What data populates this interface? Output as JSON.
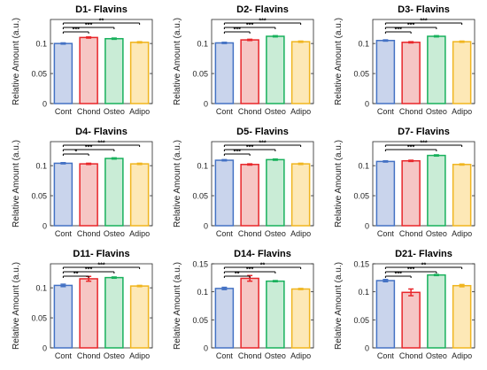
{
  "chart_data": [
    {
      "type": "bar",
      "title": "D1- Flavins",
      "ylabel": "Relative Amount (a.u.)",
      "categories": [
        "Cont",
        "Chond",
        "Osteo",
        "Adipo"
      ],
      "values": [
        0.1,
        0.11,
        0.108,
        0.102
      ],
      "errors": [
        0.001,
        0.001,
        0.001,
        0.001
      ],
      "ylim": [
        0,
        0.14
      ],
      "yticks": [
        "0",
        "0.05",
        "0.1"
      ],
      "significance": [
        {
          "from": 0,
          "to": 3,
          "label": "**"
        },
        {
          "from": 0,
          "to": 2,
          "label": "***"
        },
        {
          "from": 0,
          "to": 1,
          "label": "***"
        }
      ]
    },
    {
      "type": "bar",
      "title": "D2- Flavins",
      "ylabel": "Relative Amount (a.u.)",
      "categories": [
        "Cont",
        "Chond",
        "Osteo",
        "Adipo"
      ],
      "values": [
        0.101,
        0.106,
        0.112,
        0.103
      ],
      "errors": [
        0.001,
        0.001,
        0.001,
        0.001
      ],
      "ylim": [
        0,
        0.14
      ],
      "yticks": [
        "0",
        "0.05",
        "0.1"
      ],
      "significance": [
        {
          "from": 0,
          "to": 3,
          "label": "***"
        },
        {
          "from": 0,
          "to": 2,
          "label": "***"
        },
        {
          "from": 0,
          "to": 1,
          "label": "***"
        }
      ]
    },
    {
      "type": "bar",
      "title": "D3- Flavins",
      "ylabel": "Relative Amount (a.u.)",
      "categories": [
        "Cont",
        "Chond",
        "Osteo",
        "Adipo"
      ],
      "values": [
        0.105,
        0.102,
        0.112,
        0.103
      ],
      "errors": [
        0.001,
        0.001,
        0.001,
        0.001
      ],
      "ylim": [
        0,
        0.14
      ],
      "yticks": [
        "0",
        "0.05",
        "0.1"
      ],
      "significance": [
        {
          "from": 0,
          "to": 3,
          "label": "***"
        },
        {
          "from": 0,
          "to": 2,
          "label": "***"
        },
        {
          "from": 0,
          "to": 1,
          "label": "***"
        }
      ]
    },
    {
      "type": "bar",
      "title": "D4- Flavins",
      "ylabel": "Relative Amount (a.u.)",
      "categories": [
        "Cont",
        "Chond",
        "Osteo",
        "Adipo"
      ],
      "values": [
        0.104,
        0.103,
        0.112,
        0.103
      ],
      "errors": [
        0.001,
        0.001,
        0.001,
        0.001
      ],
      "ylim": [
        0,
        0.14
      ],
      "yticks": [
        "0",
        "0.05",
        "0.1"
      ],
      "significance": [
        {
          "from": 0,
          "to": 3,
          "label": "***"
        },
        {
          "from": 0,
          "to": 2,
          "label": "***"
        },
        {
          "from": 0,
          "to": 1,
          "label": "*"
        }
      ]
    },
    {
      "type": "bar",
      "title": "D5- Flavins",
      "ylabel": "Relative Amount (a.u.)",
      "categories": [
        "Cont",
        "Chond",
        "Osteo",
        "Adipo"
      ],
      "values": [
        0.109,
        0.102,
        0.11,
        0.103
      ],
      "errors": [
        0.001,
        0.001,
        0.001,
        0.001
      ],
      "ylim": [
        0,
        0.14
      ],
      "yticks": [
        "0",
        "0.05",
        "0.1"
      ],
      "significance": [
        {
          "from": 0,
          "to": 3,
          "label": "***"
        },
        {
          "from": 0,
          "to": 2,
          "label": "***"
        },
        {
          "from": 0,
          "to": 1,
          "label": "***"
        }
      ]
    },
    {
      "type": "bar",
      "title": "D7- Flavins",
      "ylabel": "Relative Amount (a.u.)",
      "categories": [
        "Cont",
        "Chond",
        "Osteo",
        "Adipo"
      ],
      "values": [
        0.107,
        0.108,
        0.117,
        0.102
      ],
      "errors": [
        0.001,
        0.001,
        0.001,
        0.001
      ],
      "ylim": [
        0,
        0.14
      ],
      "yticks": [
        "0",
        "0.05",
        "0.1"
      ],
      "significance": [
        {
          "from": 0,
          "to": 3,
          "label": "***"
        },
        {
          "from": 0,
          "to": 2,
          "label": "***"
        }
      ]
    },
    {
      "type": "bar",
      "title": "D11- Flavins",
      "ylabel": "Relative Amount (a.u.)",
      "categories": [
        "Cont",
        "Chond",
        "Osteo",
        "Adipo"
      ],
      "values": [
        0.104,
        0.115,
        0.117,
        0.103
      ],
      "errors": [
        0.002,
        0.004,
        0.001,
        0.001
      ],
      "ylim": [
        0,
        0.14
      ],
      "yticks": [
        "0",
        "0.05",
        "0.1"
      ],
      "significance": [
        {
          "from": 0,
          "to": 3,
          "label": "***"
        },
        {
          "from": 0,
          "to": 2,
          "label": "***"
        },
        {
          "from": 0,
          "to": 1,
          "label": "**"
        }
      ]
    },
    {
      "type": "bar",
      "title": "D14- Flavins",
      "ylabel": "Relative Amount (a.u.)",
      "categories": [
        "Cont",
        "Chond",
        "Osteo",
        "Adipo"
      ],
      "values": [
        0.106,
        0.124,
        0.119,
        0.105
      ],
      "errors": [
        0.002,
        0.005,
        0.001,
        0.001
      ],
      "ylim": [
        0,
        0.15
      ],
      "yticks": [
        "0",
        "0.05",
        "0.1",
        "0.15"
      ],
      "significance": [
        {
          "from": 0,
          "to": 3,
          "label": "**"
        },
        {
          "from": 0,
          "to": 2,
          "label": "***"
        },
        {
          "from": 0,
          "to": 1,
          "label": "**"
        }
      ]
    },
    {
      "type": "bar",
      "title": "D21- Flavins",
      "ylabel": "Relative Amount (a.u.)",
      "categories": [
        "Cont",
        "Chond",
        "Osteo",
        "Adipo"
      ],
      "values": [
        0.12,
        0.099,
        0.13,
        0.111
      ],
      "errors": [
        0.002,
        0.006,
        0.001,
        0.002
      ],
      "ylim": [
        0,
        0.15
      ],
      "yticks": [
        "0",
        "0.05",
        "0.1",
        "0.15"
      ],
      "significance": [
        {
          "from": 0,
          "to": 3,
          "label": "**"
        },
        {
          "from": 0,
          "to": 2,
          "label": "***"
        },
        {
          "from": 0,
          "to": 1,
          "label": "***"
        }
      ]
    }
  ],
  "series_colors": [
    {
      "name": "Cont",
      "fill": "#c9d4ec",
      "stroke": "#4472c4"
    },
    {
      "name": "Chond",
      "fill": "#f6c6c4",
      "stroke": "#e8262a"
    },
    {
      "name": "Osteo",
      "fill": "#c9ecd6",
      "stroke": "#18b15c"
    },
    {
      "name": "Adipo",
      "fill": "#fde8b6",
      "stroke": "#f0b51f"
    }
  ]
}
